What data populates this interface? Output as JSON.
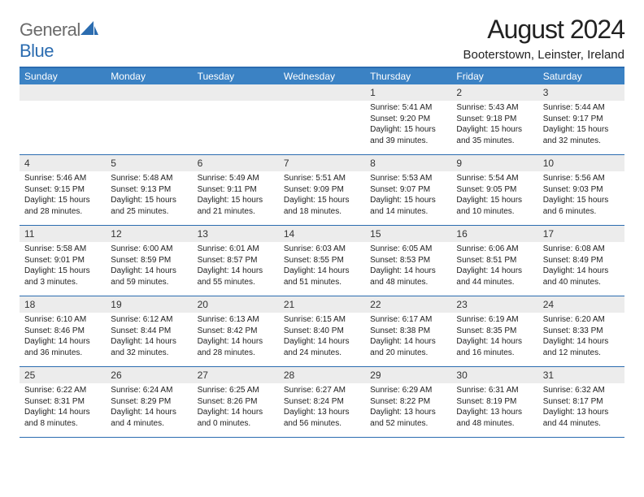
{
  "brand": {
    "text1": "General",
    "text2": "Blue"
  },
  "title": "August 2024",
  "location": "Booterstown, Leinster, Ireland",
  "colors": {
    "header_blue": "#3b82c4",
    "rule_blue": "#2b6cb0",
    "daynum_bg": "#ececec",
    "logo_gray": "#6b6b6b"
  },
  "day_headers": [
    "Sunday",
    "Monday",
    "Tuesday",
    "Wednesday",
    "Thursday",
    "Friday",
    "Saturday"
  ],
  "weeks": [
    [
      {
        "day": null
      },
      {
        "day": null
      },
      {
        "day": null
      },
      {
        "day": null
      },
      {
        "day": "1",
        "sunrise": "Sunrise: 5:41 AM",
        "sunset": "Sunset: 9:20 PM",
        "daylight": "Daylight: 15 hours and 39 minutes."
      },
      {
        "day": "2",
        "sunrise": "Sunrise: 5:43 AM",
        "sunset": "Sunset: 9:18 PM",
        "daylight": "Daylight: 15 hours and 35 minutes."
      },
      {
        "day": "3",
        "sunrise": "Sunrise: 5:44 AM",
        "sunset": "Sunset: 9:17 PM",
        "daylight": "Daylight: 15 hours and 32 minutes."
      }
    ],
    [
      {
        "day": "4",
        "sunrise": "Sunrise: 5:46 AM",
        "sunset": "Sunset: 9:15 PM",
        "daylight": "Daylight: 15 hours and 28 minutes."
      },
      {
        "day": "5",
        "sunrise": "Sunrise: 5:48 AM",
        "sunset": "Sunset: 9:13 PM",
        "daylight": "Daylight: 15 hours and 25 minutes."
      },
      {
        "day": "6",
        "sunrise": "Sunrise: 5:49 AM",
        "sunset": "Sunset: 9:11 PM",
        "daylight": "Daylight: 15 hours and 21 minutes."
      },
      {
        "day": "7",
        "sunrise": "Sunrise: 5:51 AM",
        "sunset": "Sunset: 9:09 PM",
        "daylight": "Daylight: 15 hours and 18 minutes."
      },
      {
        "day": "8",
        "sunrise": "Sunrise: 5:53 AM",
        "sunset": "Sunset: 9:07 PM",
        "daylight": "Daylight: 15 hours and 14 minutes."
      },
      {
        "day": "9",
        "sunrise": "Sunrise: 5:54 AM",
        "sunset": "Sunset: 9:05 PM",
        "daylight": "Daylight: 15 hours and 10 minutes."
      },
      {
        "day": "10",
        "sunrise": "Sunrise: 5:56 AM",
        "sunset": "Sunset: 9:03 PM",
        "daylight": "Daylight: 15 hours and 6 minutes."
      }
    ],
    [
      {
        "day": "11",
        "sunrise": "Sunrise: 5:58 AM",
        "sunset": "Sunset: 9:01 PM",
        "daylight": "Daylight: 15 hours and 3 minutes."
      },
      {
        "day": "12",
        "sunrise": "Sunrise: 6:00 AM",
        "sunset": "Sunset: 8:59 PM",
        "daylight": "Daylight: 14 hours and 59 minutes."
      },
      {
        "day": "13",
        "sunrise": "Sunrise: 6:01 AM",
        "sunset": "Sunset: 8:57 PM",
        "daylight": "Daylight: 14 hours and 55 minutes."
      },
      {
        "day": "14",
        "sunrise": "Sunrise: 6:03 AM",
        "sunset": "Sunset: 8:55 PM",
        "daylight": "Daylight: 14 hours and 51 minutes."
      },
      {
        "day": "15",
        "sunrise": "Sunrise: 6:05 AM",
        "sunset": "Sunset: 8:53 PM",
        "daylight": "Daylight: 14 hours and 48 minutes."
      },
      {
        "day": "16",
        "sunrise": "Sunrise: 6:06 AM",
        "sunset": "Sunset: 8:51 PM",
        "daylight": "Daylight: 14 hours and 44 minutes."
      },
      {
        "day": "17",
        "sunrise": "Sunrise: 6:08 AM",
        "sunset": "Sunset: 8:49 PM",
        "daylight": "Daylight: 14 hours and 40 minutes."
      }
    ],
    [
      {
        "day": "18",
        "sunrise": "Sunrise: 6:10 AM",
        "sunset": "Sunset: 8:46 PM",
        "daylight": "Daylight: 14 hours and 36 minutes."
      },
      {
        "day": "19",
        "sunrise": "Sunrise: 6:12 AM",
        "sunset": "Sunset: 8:44 PM",
        "daylight": "Daylight: 14 hours and 32 minutes."
      },
      {
        "day": "20",
        "sunrise": "Sunrise: 6:13 AM",
        "sunset": "Sunset: 8:42 PM",
        "daylight": "Daylight: 14 hours and 28 minutes."
      },
      {
        "day": "21",
        "sunrise": "Sunrise: 6:15 AM",
        "sunset": "Sunset: 8:40 PM",
        "daylight": "Daylight: 14 hours and 24 minutes."
      },
      {
        "day": "22",
        "sunrise": "Sunrise: 6:17 AM",
        "sunset": "Sunset: 8:38 PM",
        "daylight": "Daylight: 14 hours and 20 minutes."
      },
      {
        "day": "23",
        "sunrise": "Sunrise: 6:19 AM",
        "sunset": "Sunset: 8:35 PM",
        "daylight": "Daylight: 14 hours and 16 minutes."
      },
      {
        "day": "24",
        "sunrise": "Sunrise: 6:20 AM",
        "sunset": "Sunset: 8:33 PM",
        "daylight": "Daylight: 14 hours and 12 minutes."
      }
    ],
    [
      {
        "day": "25",
        "sunrise": "Sunrise: 6:22 AM",
        "sunset": "Sunset: 8:31 PM",
        "daylight": "Daylight: 14 hours and 8 minutes."
      },
      {
        "day": "26",
        "sunrise": "Sunrise: 6:24 AM",
        "sunset": "Sunset: 8:29 PM",
        "daylight": "Daylight: 14 hours and 4 minutes."
      },
      {
        "day": "27",
        "sunrise": "Sunrise: 6:25 AM",
        "sunset": "Sunset: 8:26 PM",
        "daylight": "Daylight: 14 hours and 0 minutes."
      },
      {
        "day": "28",
        "sunrise": "Sunrise: 6:27 AM",
        "sunset": "Sunset: 8:24 PM",
        "daylight": "Daylight: 13 hours and 56 minutes."
      },
      {
        "day": "29",
        "sunrise": "Sunrise: 6:29 AM",
        "sunset": "Sunset: 8:22 PM",
        "daylight": "Daylight: 13 hours and 52 minutes."
      },
      {
        "day": "30",
        "sunrise": "Sunrise: 6:31 AM",
        "sunset": "Sunset: 8:19 PM",
        "daylight": "Daylight: 13 hours and 48 minutes."
      },
      {
        "day": "31",
        "sunrise": "Sunrise: 6:32 AM",
        "sunset": "Sunset: 8:17 PM",
        "daylight": "Daylight: 13 hours and 44 minutes."
      }
    ]
  ]
}
